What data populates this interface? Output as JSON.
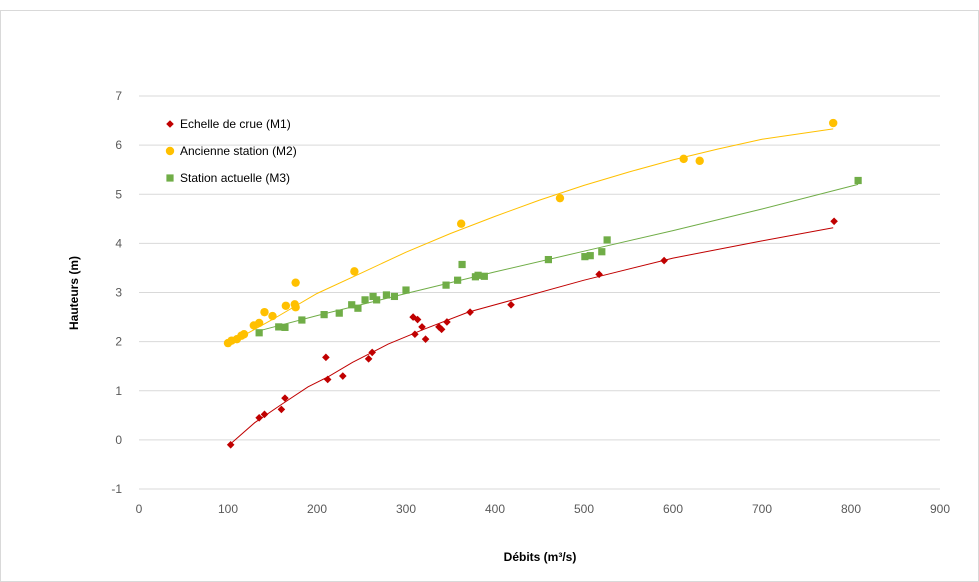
{
  "chart_data": {
    "type": "scatter",
    "title": "",
    "xlabel": "Débits (m³/s)",
    "ylabel": "Hauteurs (m)",
    "xlim": [
      0,
      900
    ],
    "ylim": [
      -1,
      7
    ],
    "xticks": [
      "0",
      "100",
      "200",
      "300",
      "400",
      "500",
      "600",
      "700",
      "800",
      "900"
    ],
    "yticks": [
      "-1",
      "0",
      "1",
      "2",
      "3",
      "4",
      "5",
      "6",
      "7"
    ],
    "grid": true,
    "legend_position": "top-left",
    "series": [
      {
        "name": "Echelle de crue (M1)",
        "marker": "diamond",
        "color": "#c00000",
        "points": [
          [
            103,
            -0.1
          ],
          [
            135,
            0.45
          ],
          [
            141,
            0.52
          ],
          [
            160,
            0.62
          ],
          [
            164,
            0.85
          ],
          [
            210,
            1.68
          ],
          [
            212,
            1.23
          ],
          [
            229,
            1.3
          ],
          [
            258,
            1.65
          ],
          [
            262,
            1.78
          ],
          [
            308,
            2.5
          ],
          [
            310,
            2.15
          ],
          [
            313,
            2.45
          ],
          [
            318,
            2.3
          ],
          [
            322,
            2.05
          ],
          [
            337,
            2.3
          ],
          [
            340,
            2.25
          ],
          [
            346,
            2.4
          ],
          [
            372,
            2.6
          ],
          [
            418,
            2.75
          ],
          [
            517,
            3.37
          ],
          [
            590,
            3.65
          ],
          [
            781,
            4.45
          ]
        ],
        "trend": [
          [
            103,
            -0.08
          ],
          [
            130,
            0.35
          ],
          [
            160,
            0.72
          ],
          [
            190,
            1.08
          ],
          [
            212,
            1.28
          ],
          [
            240,
            1.58
          ],
          [
            280,
            1.95
          ],
          [
            320,
            2.25
          ],
          [
            370,
            2.6
          ],
          [
            420,
            2.85
          ],
          [
            500,
            3.25
          ],
          [
            600,
            3.7
          ],
          [
            700,
            4.05
          ],
          [
            780,
            4.32
          ]
        ]
      },
      {
        "name": "Ancienne station (M2)",
        "marker": "circle",
        "color": "#ffc000",
        "points": [
          [
            100,
            1.97
          ],
          [
            104,
            2.02
          ],
          [
            110,
            2.05
          ],
          [
            115,
            2.12
          ],
          [
            118,
            2.15
          ],
          [
            129,
            2.33
          ],
          [
            135,
            2.38
          ],
          [
            141,
            2.6
          ],
          [
            150,
            2.52
          ],
          [
            165,
            2.73
          ],
          [
            175,
            2.76
          ],
          [
            176,
            2.7
          ],
          [
            176,
            3.2
          ],
          [
            242,
            3.43
          ],
          [
            362,
            4.4
          ],
          [
            473,
            4.92
          ],
          [
            612,
            5.72
          ],
          [
            630,
            5.68
          ],
          [
            780,
            6.45
          ]
        ],
        "trend": [
          [
            100,
            1.95
          ],
          [
            150,
            2.45
          ],
          [
            200,
            2.98
          ],
          [
            250,
            3.4
          ],
          [
            300,
            3.82
          ],
          [
            350,
            4.2
          ],
          [
            400,
            4.55
          ],
          [
            450,
            4.88
          ],
          [
            500,
            5.18
          ],
          [
            550,
            5.45
          ],
          [
            600,
            5.7
          ],
          [
            650,
            5.92
          ],
          [
            700,
            6.12
          ],
          [
            780,
            6.33
          ]
        ]
      },
      {
        "name": "Station actuelle (M3)",
        "marker": "square",
        "color": "#70ad47",
        "points": [
          [
            135,
            2.18
          ],
          [
            157,
            2.3
          ],
          [
            164,
            2.29
          ],
          [
            183,
            2.44
          ],
          [
            208,
            2.55
          ],
          [
            225,
            2.58
          ],
          [
            239,
            2.75
          ],
          [
            246,
            2.68
          ],
          [
            254,
            2.85
          ],
          [
            263,
            2.92
          ],
          [
            267,
            2.85
          ],
          [
            278,
            2.95
          ],
          [
            287,
            2.92
          ],
          [
            300,
            3.05
          ],
          [
            345,
            3.15
          ],
          [
            358,
            3.25
          ],
          [
            363,
            3.57
          ],
          [
            378,
            3.32
          ],
          [
            381,
            3.35
          ],
          [
            388,
            3.33
          ],
          [
            460,
            3.67
          ],
          [
            501,
            3.73
          ],
          [
            507,
            3.75
          ],
          [
            520,
            3.83
          ],
          [
            526,
            4.07
          ],
          [
            808,
            5.28
          ]
        ],
        "trend": [
          [
            135,
            2.22
          ],
          [
            200,
            2.53
          ],
          [
            300,
            2.98
          ],
          [
            400,
            3.42
          ],
          [
            500,
            3.84
          ],
          [
            600,
            4.26
          ],
          [
            700,
            4.7
          ],
          [
            808,
            5.2
          ]
        ]
      }
    ]
  }
}
